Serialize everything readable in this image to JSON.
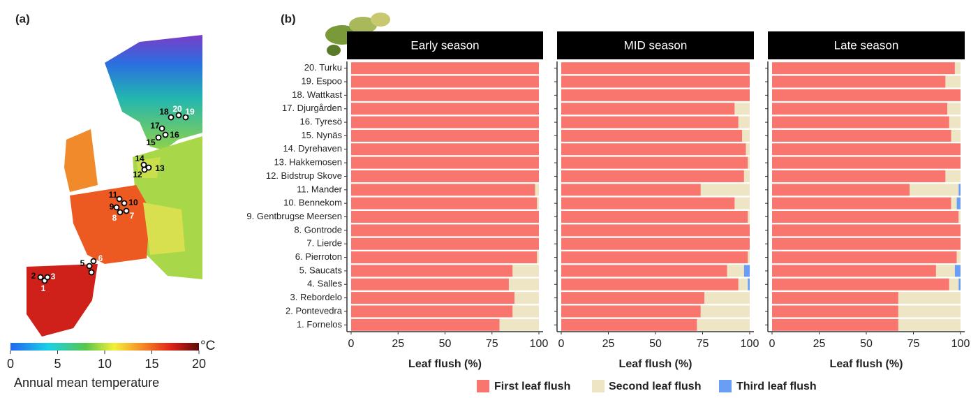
{
  "map": {
    "panel_label": "(a)",
    "site_labels": [
      "1",
      "2",
      "3",
      "4",
      "5",
      "6",
      "7",
      "8",
      "9",
      "10",
      "11",
      "12",
      "13",
      "14",
      "15",
      "16",
      "17",
      "18",
      "19",
      "20"
    ],
    "colorbar": {
      "lim": [
        0,
        20
      ],
      "ticks": [
        0,
        5,
        10,
        15,
        20
      ],
      "unit": "°C",
      "label": "Annual mean temperature"
    }
  },
  "chart_data": {
    "type": "bar",
    "orientation": "horizontal",
    "stacked": true,
    "panel_label": "(b)",
    "categories": [
      "20. Turku",
      "19. Espoo",
      "18. Wattkast",
      "17. Djurgården",
      "16. Tyresö",
      "15. Nynäs",
      "14. Dyrehaven",
      "13. Hakkemosen",
      "12. Bidstrup Skove",
      "11. Mander",
      "10. Bennekom",
      "9. Gentbrugse Meersen",
      "8. Gontrode",
      "7. Lierde",
      "6. Pierroton",
      "5. Saucats",
      "4. Salles",
      "3. Rebordelo",
      "2. Pontevedra",
      "1. Fornelos"
    ],
    "xlabel": "Leaf flush (%)",
    "xlim": [
      0,
      100
    ],
    "xticks": [
      0,
      25,
      50,
      75,
      100
    ],
    "legend": "bottom",
    "facets": [
      {
        "title": "Early season",
        "series": [
          {
            "name": "First leaf flush",
            "color": "#f8766d",
            "values": [
              100,
              100,
              100,
              100,
              100,
              100,
              100,
              100,
              100,
              98,
              99,
              100,
              100,
              100,
              99,
              86,
              84,
              87,
              86,
              79
            ]
          },
          {
            "name": "Second leaf flush",
            "color": "#ede5c3",
            "values": [
              0,
              0,
              0,
              0,
              0,
              0,
              0,
              0,
              0,
              2,
              1,
              0,
              0,
              0,
              1,
              14,
              16,
              13,
              14,
              21
            ]
          },
          {
            "name": "Third leaf flush",
            "color": "#6a9ef5",
            "values": [
              0,
              0,
              0,
              0,
              0,
              0,
              0,
              0,
              0,
              0,
              0,
              0,
              0,
              0,
              0,
              0,
              0,
              0,
              0,
              0
            ]
          }
        ]
      },
      {
        "title": "MID season",
        "series": [
          {
            "name": "First leaf flush",
            "color": "#f8766d",
            "values": [
              100,
              100,
              100,
              92,
              94,
              96,
              98,
              99,
              97,
              74,
              92,
              99,
              100,
              100,
              99,
              88,
              94,
              76,
              74,
              72
            ]
          },
          {
            "name": "Second leaf flush",
            "color": "#ede5c3",
            "values": [
              0,
              0,
              0,
              8,
              6,
              4,
              2,
              1,
              3,
              26,
              8,
              1,
              0,
              0,
              1,
              9,
              5,
              24,
              26,
              28
            ]
          },
          {
            "name": "Third leaf flush",
            "color": "#6a9ef5",
            "values": [
              0,
              0,
              0,
              0,
              0,
              0,
              0,
              0,
              0,
              0,
              0,
              0,
              0,
              0,
              0,
              3,
              1,
              0,
              0,
              0
            ]
          }
        ]
      },
      {
        "title": "Late season",
        "series": [
          {
            "name": "First leaf flush",
            "color": "#f8766d",
            "values": [
              97,
              92,
              100,
              93,
              94,
              95,
              100,
              100,
              92,
              73,
              95,
              99,
              100,
              100,
              98,
              87,
              94,
              67,
              67,
              67
            ]
          },
          {
            "name": "Second leaf flush",
            "color": "#ede5c3",
            "values": [
              3,
              8,
              0,
              7,
              6,
              5,
              0,
              0,
              8,
              26,
              3,
              1,
              0,
              0,
              2,
              10,
              5,
              33,
              33,
              33
            ]
          },
          {
            "name": "Third leaf flush",
            "color": "#6a9ef5",
            "values": [
              0,
              0,
              0,
              0,
              0,
              0,
              0,
              0,
              0,
              1,
              2,
              0,
              0,
              0,
              0,
              3,
              1,
              0,
              0,
              0
            ]
          }
        ]
      }
    ]
  }
}
